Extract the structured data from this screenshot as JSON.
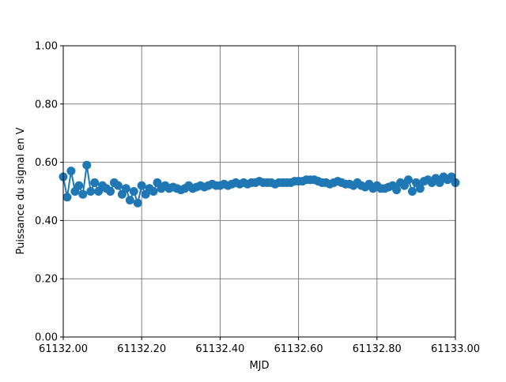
{
  "chart_data": {
    "type": "line",
    "x_label": "MJD",
    "y_label": "Puissance du signal en V",
    "color": "#1f77b4",
    "grid": true,
    "xlim": [
      61132.0,
      61133.0
    ],
    "xticks": [
      {
        "value": 61132.0,
        "label": "61132.00"
      },
      {
        "value": 61132.2,
        "label": "61132.20"
      },
      {
        "value": 61132.4,
        "label": "61132.40"
      },
      {
        "value": 61132.6,
        "label": "61132.60"
      },
      {
        "value": 61132.8,
        "label": "61132.80"
      },
      {
        "value": 61133.0,
        "label": "61133.00"
      }
    ],
    "ylim": [
      0,
      1
    ],
    "yticks": [
      {
        "value": 0,
        "label": "0.00"
      },
      {
        "value": 0.2,
        "label": "0.20"
      },
      {
        "value": 0.4,
        "label": "0.40"
      },
      {
        "value": 0.6,
        "label": "0.60"
      },
      {
        "value": 0.8,
        "label": "0.80"
      },
      {
        "value": 1,
        "label": "1.00"
      }
    ],
    "x": [
      61132.0,
      61132.01,
      61132.02,
      61132.03,
      61132.04,
      61132.05,
      61132.06,
      61132.07,
      61132.08,
      61132.09,
      61132.1,
      61132.11,
      61132.12,
      61132.13,
      61132.14,
      61132.15,
      61132.16,
      61132.17,
      61132.18,
      61132.19,
      61132.2,
      61132.21,
      61132.22,
      61132.23,
      61132.24,
      61132.25,
      61132.26,
      61132.27,
      61132.28,
      61132.29,
      61132.3,
      61132.31,
      61132.32,
      61132.33,
      61132.34,
      61132.35,
      61132.36,
      61132.37,
      61132.38,
      61132.39,
      61132.4,
      61132.41,
      61132.42,
      61132.43,
      61132.44,
      61132.45,
      61132.46,
      61132.47,
      61132.48,
      61132.49,
      61132.5,
      61132.51,
      61132.52,
      61132.53,
      61132.54,
      61132.55,
      61132.56,
      61132.57,
      61132.58,
      61132.59,
      61132.6,
      61132.61,
      61132.62,
      61132.63,
      61132.64,
      61132.65,
      61132.66,
      61132.67,
      61132.68,
      61132.69,
      61132.7,
      61132.71,
      61132.72,
      61132.73,
      61132.74,
      61132.75,
      61132.76,
      61132.77,
      61132.78,
      61132.79,
      61132.8,
      61132.81,
      61132.82,
      61132.83,
      61132.84,
      61132.85,
      61132.86,
      61132.87,
      61132.88,
      61132.89,
      61132.9,
      61132.91,
      61132.92,
      61132.93,
      61132.94,
      61132.95,
      61132.96,
      61132.97,
      61132.98,
      61132.99,
      61133.0
    ],
    "values": [
      0.55,
      0.48,
      0.57,
      0.5,
      0.52,
      0.49,
      0.59,
      0.5,
      0.53,
      0.5,
      0.52,
      0.51,
      0.5,
      0.53,
      0.52,
      0.49,
      0.51,
      0.47,
      0.5,
      0.46,
      0.52,
      0.49,
      0.51,
      0.5,
      0.53,
      0.51,
      0.52,
      0.51,
      0.515,
      0.51,
      0.505,
      0.51,
      0.52,
      0.51,
      0.515,
      0.52,
      0.515,
      0.52,
      0.525,
      0.52,
      0.52,
      0.525,
      0.52,
      0.525,
      0.53,
      0.525,
      0.53,
      0.525,
      0.53,
      0.53,
      0.535,
      0.53,
      0.53,
      0.53,
      0.525,
      0.53,
      0.53,
      0.53,
      0.53,
      0.535,
      0.535,
      0.535,
      0.54,
      0.54,
      0.54,
      0.535,
      0.53,
      0.53,
      0.525,
      0.53,
      0.535,
      0.53,
      0.525,
      0.525,
      0.52,
      0.53,
      0.52,
      0.515,
      0.525,
      0.51,
      0.52,
      0.51,
      0.51,
      0.515,
      0.52,
      0.505,
      0.53,
      0.52,
      0.54,
      0.5,
      0.53,
      0.51,
      0.535,
      0.54,
      0.53,
      0.545,
      0.53,
      0.55,
      0.54,
      0.55,
      0.53
    ]
  }
}
